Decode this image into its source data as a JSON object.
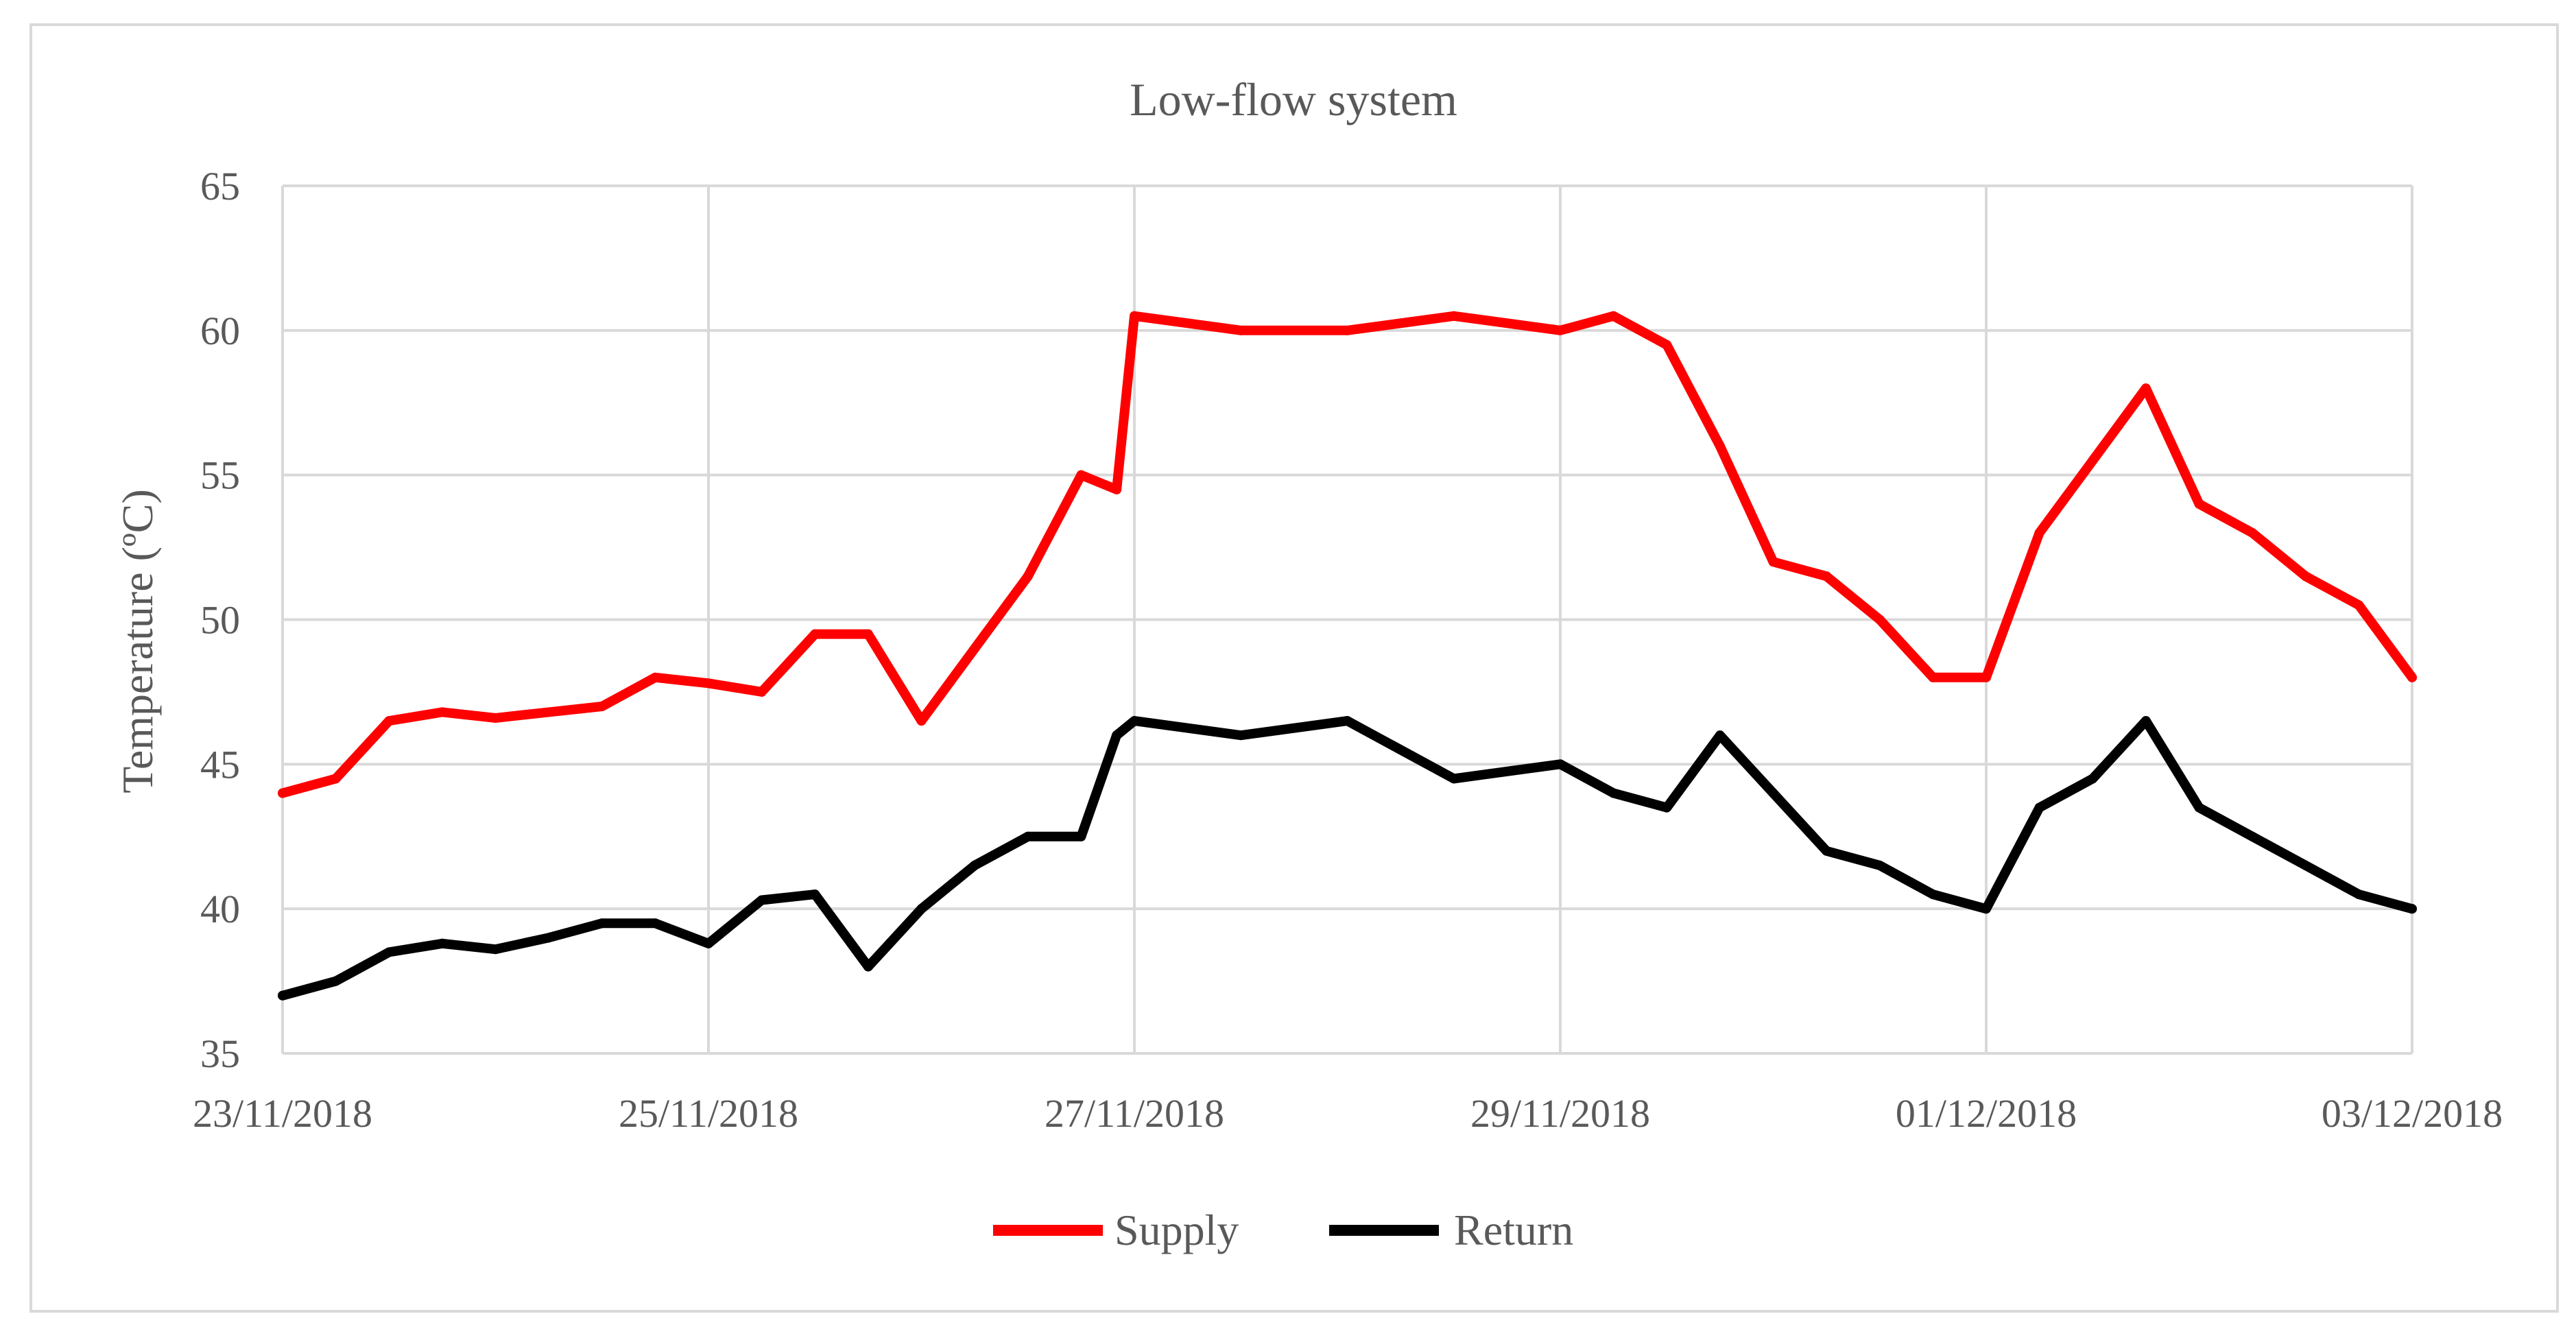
{
  "chart_data": {
    "type": "line",
    "title": "Low-flow system",
    "xlabel": "",
    "ylabel": "Temperature (ºC)",
    "ylim": [
      35,
      65
    ],
    "yticks": [
      35,
      40,
      45,
      50,
      55,
      60,
      65
    ],
    "xlim": [
      "23/11/2018",
      "03/12/2018"
    ],
    "xticks": [
      "23/11/2018",
      "25/11/2018",
      "27/11/2018",
      "29/11/2018",
      "01/12/2018",
      "03/12/2018"
    ],
    "grid": true,
    "legend": "bottom",
    "series": [
      {
        "name": "Supply",
        "color": "#ff0000",
        "x": [
          "2018-11-23 00:00",
          "2018-11-23 06:00",
          "2018-11-23 12:00",
          "2018-11-23 18:00",
          "2018-11-24 00:00",
          "2018-11-24 06:00",
          "2018-11-24 12:00",
          "2018-11-24 18:00",
          "2018-11-25 00:00",
          "2018-11-25 06:00",
          "2018-11-25 12:00",
          "2018-11-25 18:00",
          "2018-11-26 00:00",
          "2018-11-26 06:00",
          "2018-11-26 12:00",
          "2018-11-26 18:00",
          "2018-11-26 22:00",
          "2018-11-27 00:00",
          "2018-11-27 12:00",
          "2018-11-28 00:00",
          "2018-11-28 12:00",
          "2018-11-29 00:00",
          "2018-11-29 06:00",
          "2018-11-29 12:00",
          "2018-11-29 18:00",
          "2018-11-30 00:00",
          "2018-11-30 06:00",
          "2018-11-30 12:00",
          "2018-11-30 18:00",
          "2018-12-01 00:00",
          "2018-12-01 06:00",
          "2018-12-01 12:00",
          "2018-12-01 18:00",
          "2018-12-02 00:00",
          "2018-12-02 06:00",
          "2018-12-02 12:00",
          "2018-12-02 18:00",
          "2018-12-03 00:00"
        ],
        "values": [
          44.0,
          44.5,
          46.5,
          46.8,
          46.6,
          46.8,
          47.0,
          48.0,
          47.8,
          47.5,
          49.5,
          49.5,
          46.5,
          49.0,
          51.5,
          55.0,
          54.5,
          60.5,
          60.0,
          60.0,
          60.5,
          60.0,
          60.5,
          59.5,
          56.0,
          52.0,
          51.5,
          50.0,
          48.0,
          48.0,
          53.0,
          55.5,
          58.0,
          54.0,
          53.0,
          51.5,
          50.5,
          48.0
        ]
      },
      {
        "name": "Return",
        "color": "#000000",
        "x": [
          "2018-11-23 00:00",
          "2018-11-23 06:00",
          "2018-11-23 12:00",
          "2018-11-23 18:00",
          "2018-11-24 00:00",
          "2018-11-24 06:00",
          "2018-11-24 12:00",
          "2018-11-24 18:00",
          "2018-11-25 00:00",
          "2018-11-25 06:00",
          "2018-11-25 12:00",
          "2018-11-25 18:00",
          "2018-11-26 00:00",
          "2018-11-26 06:00",
          "2018-11-26 12:00",
          "2018-11-26 18:00",
          "2018-11-26 22:00",
          "2018-11-27 00:00",
          "2018-11-27 12:00",
          "2018-11-28 00:00",
          "2018-11-28 12:00",
          "2018-11-29 00:00",
          "2018-11-29 06:00",
          "2018-11-29 12:00",
          "2018-11-29 18:00",
          "2018-11-30 00:00",
          "2018-11-30 06:00",
          "2018-11-30 12:00",
          "2018-11-30 18:00",
          "2018-12-01 00:00",
          "2018-12-01 06:00",
          "2018-12-01 12:00",
          "2018-12-01 18:00",
          "2018-12-02 00:00",
          "2018-12-02 06:00",
          "2018-12-02 12:00",
          "2018-12-02 18:00",
          "2018-12-03 00:00"
        ],
        "values": [
          37.0,
          37.5,
          38.5,
          38.8,
          38.6,
          39.0,
          39.5,
          39.5,
          38.8,
          40.3,
          40.5,
          38.0,
          40.0,
          41.5,
          42.5,
          42.5,
          46.0,
          46.5,
          46.0,
          46.5,
          44.5,
          45.0,
          44.0,
          43.5,
          46.0,
          44.0,
          42.0,
          41.5,
          40.5,
          40.0,
          43.5,
          44.5,
          46.5,
          43.5,
          42.5,
          41.5,
          40.5,
          40.0
        ]
      }
    ]
  }
}
